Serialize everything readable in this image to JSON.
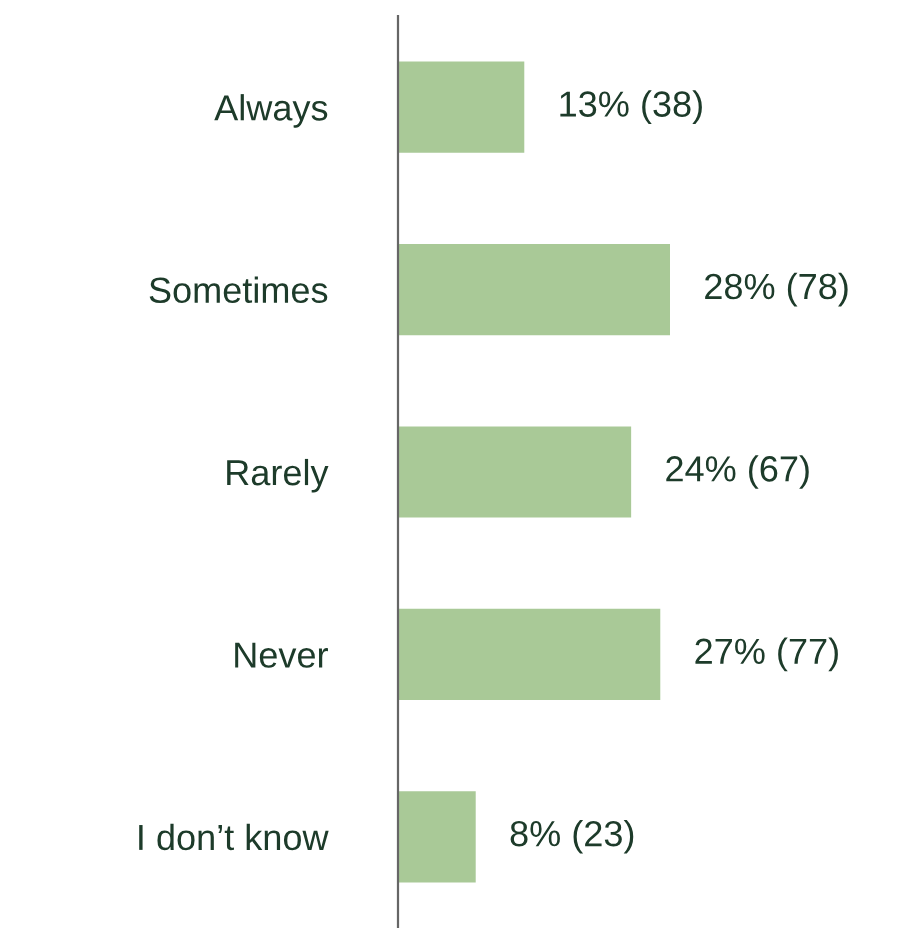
{
  "chart_data": {
    "type": "bar",
    "orientation": "horizontal",
    "categories": [
      "Always",
      "Sometimes",
      "Rarely",
      "Never",
      "I don’t know"
    ],
    "values": [
      13,
      28,
      24,
      27,
      8
    ],
    "value_labels": [
      "13% (38)",
      "28% (78)",
      "24% (67)",
      "27% (77)",
      "8% (23)"
    ],
    "color": "#a9c997",
    "grid": false
  }
}
